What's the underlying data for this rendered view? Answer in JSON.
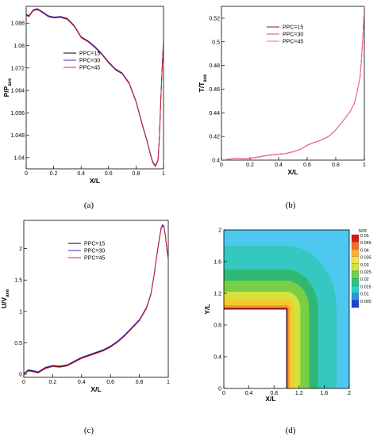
{
  "chart_data": [
    {
      "panel": "(a)",
      "type": "line",
      "xlabel": "X/L",
      "ylabel": "P/P",
      "ylabel_sub": "ave",
      "xlim": [
        0,
        1
      ],
      "ylim": [
        1.036,
        1.094
      ],
      "xticks": [
        "0",
        "0.2",
        "0.4",
        "0.6",
        "0.8",
        "1"
      ],
      "yticks": [
        "1.04",
        "1.048",
        "1.056",
        "1.064",
        "1.072",
        "1.08",
        "1.088"
      ],
      "legend": "top-center",
      "series": [
        {
          "name": "PPC=15",
          "color": "#000000",
          "x": [
            0,
            0.02,
            0.05,
            0.08,
            0.1,
            0.13,
            0.16,
            0.2,
            0.25,
            0.3,
            0.35,
            0.4,
            0.45,
            0.5,
            0.55,
            0.6,
            0.65,
            0.7,
            0.75,
            0.8,
            0.85,
            0.88,
            0.9,
            0.92,
            0.94,
            0.96,
            0.97,
            0.98,
            0.99,
            1.0
          ],
          "y": [
            1.091,
            1.0905,
            1.0925,
            1.093,
            1.0925,
            1.0915,
            1.0905,
            1.09,
            1.0902,
            1.0895,
            1.087,
            1.083,
            1.0815,
            1.0795,
            1.077,
            1.074,
            1.0715,
            1.07,
            1.0665,
            1.06,
            1.051,
            1.046,
            1.042,
            1.0385,
            1.037,
            1.039,
            1.047,
            1.06,
            1.072,
            1.082
          ]
        },
        {
          "name": "PPC=30",
          "color": "#3333cc",
          "x": [
            0,
            0.02,
            0.05,
            0.08,
            0.1,
            0.13,
            0.16,
            0.2,
            0.25,
            0.3,
            0.35,
            0.4,
            0.45,
            0.5,
            0.55,
            0.6,
            0.65,
            0.7,
            0.75,
            0.8,
            0.85,
            0.88,
            0.9,
            0.92,
            0.94,
            0.96,
            0.97,
            0.98,
            0.99,
            1.0
          ],
          "y": [
            1.0912,
            1.0907,
            1.0927,
            1.0932,
            1.0927,
            1.0917,
            1.0907,
            1.0902,
            1.0904,
            1.0897,
            1.0872,
            1.0832,
            1.0817,
            1.0797,
            1.0772,
            1.0742,
            1.0717,
            1.0702,
            1.0667,
            1.0602,
            1.0512,
            1.0462,
            1.0422,
            1.0387,
            1.0372,
            1.0392,
            1.0472,
            1.0602,
            1.0722,
            1.0822
          ]
        },
        {
          "name": "PPC=45",
          "color": "#e0202a",
          "x": [
            0,
            0.02,
            0.05,
            0.08,
            0.1,
            0.13,
            0.16,
            0.2,
            0.25,
            0.3,
            0.35,
            0.4,
            0.45,
            0.5,
            0.55,
            0.6,
            0.65,
            0.7,
            0.75,
            0.8,
            0.85,
            0.88,
            0.9,
            0.92,
            0.94,
            0.96,
            0.97,
            0.98,
            0.99,
            1.0
          ],
          "y": [
            1.0908,
            1.0903,
            1.0923,
            1.0928,
            1.0923,
            1.0913,
            1.0903,
            1.0898,
            1.09,
            1.0893,
            1.0868,
            1.0828,
            1.0813,
            1.0793,
            1.0768,
            1.0738,
            1.0713,
            1.0698,
            1.0663,
            1.0598,
            1.0508,
            1.0458,
            1.0418,
            1.0383,
            1.0368,
            1.0388,
            1.0468,
            1.0598,
            1.0718,
            1.0818
          ]
        }
      ]
    },
    {
      "panel": "(b)",
      "type": "line",
      "xlabel": "X/L",
      "ylabel": "T/T",
      "ylabel_sub": "ave",
      "xlim": [
        0,
        1
      ],
      "ylim": [
        0.4,
        0.53
      ],
      "xticks": [
        "0",
        "0.2",
        "0.4",
        "0.6",
        "0.8",
        "1"
      ],
      "yticks": [
        "0.4",
        "0.42",
        "0.44",
        "0.46",
        "0.48",
        "0.5",
        "0.52"
      ],
      "legend": "top-center",
      "series": [
        {
          "name": "PPC=15",
          "color": "#8b1a1a",
          "x": [
            0,
            0.05,
            0.1,
            0.15,
            0.2,
            0.25,
            0.3,
            0.35,
            0.4,
            0.45,
            0.5,
            0.55,
            0.6,
            0.65,
            0.7,
            0.75,
            0.8,
            0.85,
            0.9,
            0.93,
            0.95,
            0.97,
            0.98,
            0.99,
            1.0
          ],
          "y": [
            0.4,
            0.4008,
            0.4015,
            0.401,
            0.4015,
            0.4025,
            0.4035,
            0.4045,
            0.405,
            0.4055,
            0.407,
            0.409,
            0.4125,
            0.415,
            0.417,
            0.42,
            0.4255,
            0.433,
            0.441,
            0.448,
            0.458,
            0.47,
            0.485,
            0.505,
            0.53
          ]
        },
        {
          "name": "PPC=30",
          "color": "#c05068",
          "x": [
            0,
            0.05,
            0.1,
            0.15,
            0.2,
            0.25,
            0.3,
            0.35,
            0.4,
            0.45,
            0.5,
            0.55,
            0.6,
            0.65,
            0.7,
            0.75,
            0.8,
            0.85,
            0.9,
            0.93,
            0.95,
            0.97,
            0.98,
            0.99,
            1.0
          ],
          "y": [
            0.4,
            0.4009,
            0.4016,
            0.4011,
            0.4016,
            0.4026,
            0.4036,
            0.4046,
            0.4051,
            0.4056,
            0.4071,
            0.4091,
            0.4126,
            0.4151,
            0.4171,
            0.4201,
            0.4256,
            0.4331,
            0.4411,
            0.4481,
            0.4581,
            0.4701,
            0.4851,
            0.5051,
            0.53
          ]
        },
        {
          "name": "PPC=45",
          "color": "#ff6b8a",
          "x": [
            0,
            0.05,
            0.1,
            0.15,
            0.2,
            0.25,
            0.3,
            0.35,
            0.4,
            0.45,
            0.5,
            0.55,
            0.6,
            0.65,
            0.7,
            0.75,
            0.8,
            0.85,
            0.9,
            0.93,
            0.95,
            0.97,
            0.98,
            0.99,
            1.0
          ],
          "y": [
            0.4,
            0.4007,
            0.4014,
            0.4009,
            0.4014,
            0.4024,
            0.4034,
            0.4044,
            0.4049,
            0.4054,
            0.4069,
            0.4089,
            0.4124,
            0.4149,
            0.4169,
            0.4199,
            0.4254,
            0.4329,
            0.4409,
            0.4479,
            0.4579,
            0.4699,
            0.4849,
            0.5049,
            0.53
          ]
        }
      ]
    },
    {
      "panel": "(c)",
      "type": "line",
      "xlabel": "X/L",
      "ylabel": "U/V",
      "ylabel_sub": "ave",
      "xlim": [
        0,
        1
      ],
      "ylim": [
        -0.05,
        2.45
      ],
      "xticks": [
        "0",
        "0.2",
        "0.4",
        "0.6",
        "0.8",
        "1"
      ],
      "yticks": [
        "0",
        "0.5",
        "1",
        "1.5",
        "2"
      ],
      "legend": "top-center",
      "series": [
        {
          "name": "PPC=15",
          "color": "#000000",
          "x": [
            0,
            0.03,
            0.06,
            0.1,
            0.15,
            0.2,
            0.25,
            0.3,
            0.35,
            0.4,
            0.45,
            0.5,
            0.55,
            0.6,
            0.65,
            0.7,
            0.75,
            0.8,
            0.85,
            0.88,
            0.9,
            0.92,
            0.94,
            0.95,
            0.96,
            0.97,
            0.98,
            0.99,
            1.0
          ],
          "y": [
            0.0,
            0.06,
            0.05,
            0.03,
            0.1,
            0.13,
            0.12,
            0.14,
            0.2,
            0.26,
            0.3,
            0.34,
            0.38,
            0.44,
            0.52,
            0.62,
            0.74,
            0.86,
            1.06,
            1.28,
            1.55,
            1.88,
            2.18,
            2.32,
            2.37,
            2.35,
            2.2,
            2.0,
            1.82
          ]
        },
        {
          "name": "PPC=30",
          "color": "#3333cc",
          "x": [
            0,
            0.03,
            0.06,
            0.1,
            0.15,
            0.2,
            0.25,
            0.3,
            0.35,
            0.4,
            0.45,
            0.5,
            0.55,
            0.6,
            0.65,
            0.7,
            0.75,
            0.8,
            0.85,
            0.88,
            0.9,
            0.92,
            0.94,
            0.95,
            0.96,
            0.97,
            0.98,
            0.99,
            1.0
          ],
          "y": [
            0.01,
            0.07,
            0.06,
            0.04,
            0.11,
            0.14,
            0.13,
            0.15,
            0.21,
            0.27,
            0.31,
            0.35,
            0.39,
            0.45,
            0.53,
            0.63,
            0.75,
            0.87,
            1.07,
            1.29,
            1.56,
            1.89,
            2.19,
            2.33,
            2.38,
            2.36,
            2.21,
            2.01,
            1.83
          ]
        },
        {
          "name": "PPC=45",
          "color": "#e0202a",
          "x": [
            0,
            0.03,
            0.06,
            0.1,
            0.15,
            0.2,
            0.25,
            0.3,
            0.35,
            0.4,
            0.45,
            0.5,
            0.55,
            0.6,
            0.65,
            0.7,
            0.75,
            0.8,
            0.85,
            0.88,
            0.9,
            0.92,
            0.94,
            0.95,
            0.96,
            0.97,
            0.98,
            0.99,
            1.0
          ],
          "y": [
            -0.01,
            0.05,
            0.04,
            0.02,
            0.09,
            0.12,
            0.11,
            0.13,
            0.19,
            0.25,
            0.29,
            0.33,
            0.37,
            0.43,
            0.51,
            0.61,
            0.73,
            0.85,
            1.05,
            1.27,
            1.54,
            1.87,
            2.17,
            2.31,
            2.36,
            2.34,
            2.19,
            1.99,
            1.81
          ]
        }
      ]
    },
    {
      "panel": "(d)",
      "type": "heatmap",
      "xlabel": "X/L",
      "ylabel": "Y/L",
      "xlim": [
        0,
        2
      ],
      "ylim": [
        0,
        2
      ],
      "xticks": [
        "0",
        "0.4",
        "0.8",
        "1.2",
        "1.6",
        "2"
      ],
      "yticks": [
        "0",
        "0.4",
        "0.8",
        "1.2",
        "1.6",
        "2"
      ],
      "colorbar_title": "SOF",
      "levels": [
        "0.05",
        "0.045",
        "0.04",
        "0.035",
        "0.03",
        "0.025",
        "0.02",
        "0.015",
        "0.01",
        "0.005"
      ],
      "level_colors": [
        "#d7191c",
        "#f46d2a",
        "#fdae3a",
        "#f7e04a",
        "#c9e64a",
        "#6fd04a",
        "#2fc47a",
        "#2fd0c8",
        "#2f8fe0",
        "#2040d0"
      ],
      "background_color": "#4fc8f0",
      "obstacle": {
        "x": [
          0,
          1.0
        ],
        "y": [
          0,
          1.0
        ],
        "color": "#ffffff"
      },
      "bands": [
        {
          "value": "0.02",
          "color": "#35c8c0",
          "offset": 0.8
        },
        {
          "value": "0.025",
          "color": "#2fb872",
          "offset": 0.5
        },
        {
          "value": "0.03",
          "color": "#78cf46",
          "offset": 0.36
        },
        {
          "value": "0.035",
          "color": "#d4e23c",
          "offset": 0.22
        },
        {
          "value": "0.04",
          "color": "#f5c930",
          "offset": 0.12
        },
        {
          "value": "0.045",
          "color": "#f39a2a",
          "offset": 0.05
        },
        {
          "value": "0.05",
          "color": "#d0312a",
          "offset": 0.02
        }
      ]
    }
  ]
}
